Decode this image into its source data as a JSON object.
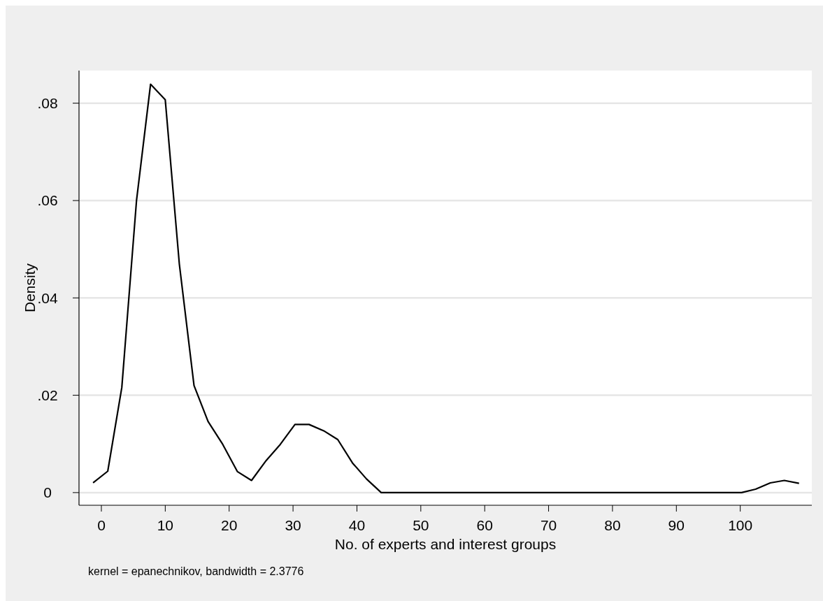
{
  "chart_data": {
    "type": "line",
    "xlabel": "No. of experts and interest groups",
    "ylabel": "Density",
    "annotations": [
      "kernel = epanechnikov, bandwidth = 2.3776"
    ],
    "x": [
      -1.3,
      1.0,
      3.2,
      5.5,
      7.7,
      10.0,
      12.2,
      14.5,
      16.7,
      19.0,
      21.3,
      23.5,
      25.8,
      28.0,
      30.3,
      32.5,
      34.8,
      37.0,
      39.3,
      41.5,
      43.8,
      46.1,
      48.3,
      50.6,
      52.8,
      55.1,
      57.3,
      59.6,
      61.8,
      64.1,
      66.4,
      68.6,
      70.9,
      73.1,
      75.4,
      77.6,
      79.9,
      82.1,
      84.4,
      86.6,
      88.9,
      91.2,
      93.4,
      95.7,
      97.9,
      100.2,
      102.4,
      104.7,
      106.9,
      109.2
    ],
    "series": [
      {
        "color": "#000000",
        "values": [
          0.002,
          0.0044,
          0.0216,
          0.06,
          0.0839,
          0.0807,
          0.047,
          0.022,
          0.0146,
          0.0099,
          0.0043,
          0.0025,
          0.0066,
          0.0099,
          0.014,
          0.014,
          0.0127,
          0.0109,
          0.0061,
          0.0028,
          0,
          0,
          0,
          0,
          0,
          0,
          0,
          0,
          0,
          0,
          0,
          0,
          0,
          0,
          0,
          0,
          0,
          0,
          0,
          0,
          0,
          0,
          0,
          0,
          0,
          0,
          0.0007,
          0.002,
          0.0025,
          0.0019
        ]
      }
    ],
    "xlim": [
      -3.5,
      111.2
    ],
    "ylim": [
      -0.0026,
      0.0867
    ],
    "xticks": [
      0,
      10,
      20,
      30,
      40,
      50,
      60,
      70,
      80,
      90,
      100
    ],
    "yticks": [
      0,
      {
        "value": 0.02,
        "label": ".02"
      },
      {
        "value": 0.04,
        "label": ".04"
      },
      {
        "value": 0.06,
        "label": ".06"
      },
      {
        "value": 0.08,
        "label": ".08"
      }
    ],
    "grid": "y",
    "marker": "none",
    "line_style": "solid"
  }
}
